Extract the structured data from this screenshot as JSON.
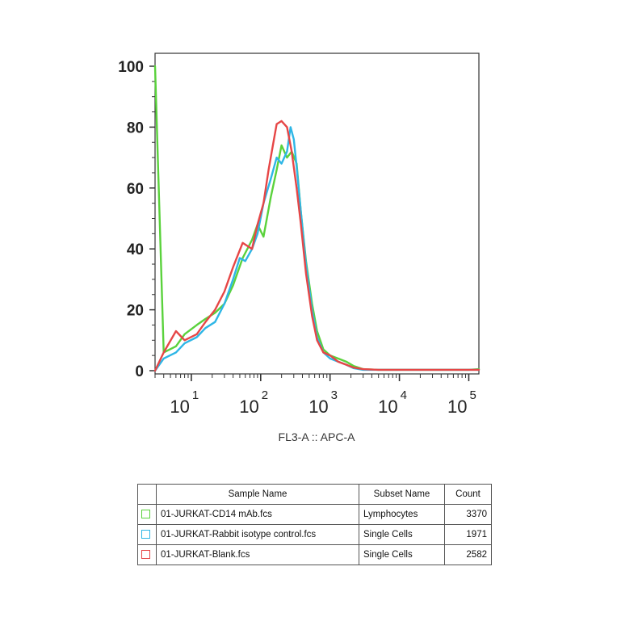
{
  "chart_data": {
    "type": "line",
    "xlabel": "FL3-A :: APC-A",
    "ylabel": "",
    "x_scale": "log",
    "xlim": [
      3,
      140000
    ],
    "ylim": [
      0,
      100
    ],
    "y_ticks": [
      0,
      20,
      40,
      60,
      80,
      100
    ],
    "x_ticks": [
      {
        "value": 10,
        "base": "10",
        "exp": "1"
      },
      {
        "value": 100,
        "base": "10",
        "exp": "2"
      },
      {
        "value": 1000,
        "base": "10",
        "exp": "3"
      },
      {
        "value": 10000,
        "base": "10",
        "exp": "4"
      },
      {
        "value": 100000,
        "base": "10",
        "exp": "5"
      }
    ],
    "series": [
      {
        "name": "01-JURKAT-CD14 mAb.fcs",
        "color": "#5ad23c",
        "x": [
          3,
          4,
          6,
          8,
          12,
          16,
          22,
          30,
          40,
          55,
          75,
          90,
          110,
          140,
          170,
          200,
          240,
          280,
          330,
          380,
          450,
          550,
          650,
          800,
          1000,
          1300,
          1700,
          2200,
          3000,
          5000,
          10000,
          30000,
          100000,
          140000
        ],
        "y": [
          100,
          6,
          8,
          12,
          15,
          17,
          19,
          22,
          28,
          37,
          43,
          48,
          44,
          57,
          66,
          74,
          70,
          72,
          68,
          52,
          36,
          22,
          13,
          7,
          5,
          4,
          3,
          1.5,
          0.5,
          0.3,
          0.3,
          0.3,
          0.3,
          0.5
        ]
      },
      {
        "name": "01-JURKAT-Rabbit isotype control.fcs",
        "color": "#2eb6e6",
        "x": [
          3,
          4,
          6,
          8,
          12,
          16,
          22,
          30,
          40,
          50,
          60,
          75,
          90,
          110,
          140,
          170,
          200,
          240,
          270,
          300,
          330,
          380,
          450,
          550,
          650,
          800,
          1000,
          1300,
          1700,
          2200,
          3000,
          5000,
          10000,
          30000,
          100000,
          140000
        ],
        "y": [
          0,
          4,
          6,
          9,
          11,
          14,
          16,
          22,
          30,
          37,
          36,
          40,
          45,
          55,
          63,
          70,
          68,
          72,
          80,
          76,
          67,
          52,
          35,
          20,
          11,
          6,
          4,
          3,
          2,
          0.8,
          0.3,
          0.3,
          0.3,
          0.3,
          0.3,
          0.3
        ]
      },
      {
        "name": "01-JURKAT-Blank.fcs",
        "color": "#e64646",
        "x": [
          3,
          4,
          6,
          8,
          12,
          16,
          22,
          30,
          40,
          55,
          75,
          90,
          110,
          130,
          150,
          170,
          200,
          240,
          280,
          330,
          380,
          450,
          550,
          650,
          800,
          1000,
          1300,
          1700,
          2200,
          3000,
          5000,
          10000,
          30000,
          100000,
          140000
        ],
        "y": [
          0,
          6,
          13,
          10,
          12,
          16,
          20,
          26,
          34,
          42,
          40,
          48,
          55,
          66,
          74,
          81,
          82,
          80,
          72,
          60,
          48,
          32,
          18,
          10,
          6,
          5,
          3,
          2,
          1,
          0.5,
          0.3,
          0.3,
          0.3,
          0.3,
          0.3
        ]
      }
    ]
  },
  "legend_table": {
    "headers": {
      "sample": "Sample Name",
      "subset": "Subset Name",
      "count": "Count"
    },
    "rows": [
      {
        "sample": "01-JURKAT-CD14 mAb.fcs",
        "subset": "Lymphocytes",
        "count": "3370",
        "color": "#5ad23c"
      },
      {
        "sample": "01-JURKAT-Rabbit isotype control.fcs",
        "subset": "Single Cells",
        "count": "1971",
        "color": "#2eb6e6"
      },
      {
        "sample": "01-JURKAT-Blank.fcs",
        "subset": "Single Cells",
        "count": "2582",
        "color": "#e64646"
      }
    ]
  }
}
